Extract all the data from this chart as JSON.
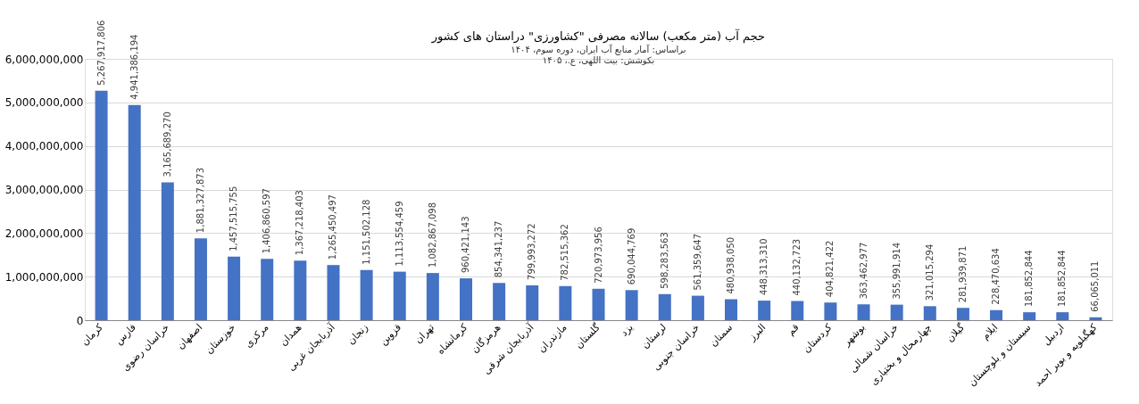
{
  "chart_data": {
    "type": "bar",
    "title": "حجم آب (متر مکعب) سالانه مصرفی \"کشاورزی\" دراستان های کشور",
    "subtitle": "براساس: آمار منابع آب ایران، دوره سوم، ۱۴۰۴",
    "annotations": [
      "بکوشش: بیت اللهی، ع.، ۱۴۰۵"
    ],
    "categories": [
      "کرمان",
      "فارس",
      "خراسان رضوی",
      "اصفهان",
      "خوزستان",
      "مرکزی",
      "همدان",
      "آذربایجان غربی",
      "زنجان",
      "قزوین",
      "تهران",
      "کرمانشاه",
      "هرمزگان",
      "آذربایجان شرقی",
      "مازندران",
      "گلستان",
      "یزد",
      "لرستان",
      "خراسان جنوبی",
      "سمنان",
      "البرز",
      "قم",
      "کردستان",
      "بوشهر",
      "خراسان شمالی",
      "چهارمحال و بختیاری",
      "گیلان",
      "ایلام",
      "سیستان و بلوچستان",
      "اردبیل",
      "کهگیلویه و بویر احمد"
    ],
    "values": [
      5267917806,
      4941386194,
      3165689270,
      1881327873,
      1457515755,
      1406860597,
      1367218403,
      1265450497,
      1151502128,
      1113554459,
      1082867098,
      960421143,
      854341237,
      799993272,
      782515362,
      720973956,
      690044769,
      598283563,
      561359647,
      480938050,
      448313310,
      440132723,
      404821422,
      363462977,
      355991914,
      321015294,
      281939871,
      228470634,
      181852844,
      181852844,
      66065011
    ],
    "value_labels": [
      "5,267,917,806",
      "4,941,386,194",
      "3,165,689,270",
      "1,881,327,873",
      "1,457,515,755",
      "1,406,860,597",
      "1,367,218,403",
      "1,265,450,497",
      "1,151,502,128",
      "1,113,554,459",
      "1,082,867,098",
      "960,421,143",
      "854,341,237",
      "799,993,272",
      "782,515,362",
      "720,973,956",
      "690,044,769",
      "598,283,563",
      "561,359,647",
      "480,938,050",
      "448,313,310",
      "440,132,723",
      "404,821,422",
      "363,462,977",
      "355,991,914",
      "321,015,294",
      "281,939,871",
      "228,470,634",
      "181,852,844",
      "181,852,844",
      "66,065,011"
    ],
    "color": "#4472c4",
    "ylim": [
      0,
      6000000000
    ],
    "yticks": [
      0,
      {
        "value": 1000000000,
        "label": "1,000,000,000"
      },
      {
        "value": 2000000000,
        "label": "2,000,000,000"
      },
      {
        "value": 3000000000,
        "label": "3,000,000,000"
      },
      {
        "value": 4000000000,
        "label": "4,000,000,000"
      },
      {
        "value": 5000000000,
        "label": "5,000,000,000"
      },
      {
        "value": 6000000000,
        "label": "6,000,000,000"
      }
    ],
    "grid": "y"
  }
}
